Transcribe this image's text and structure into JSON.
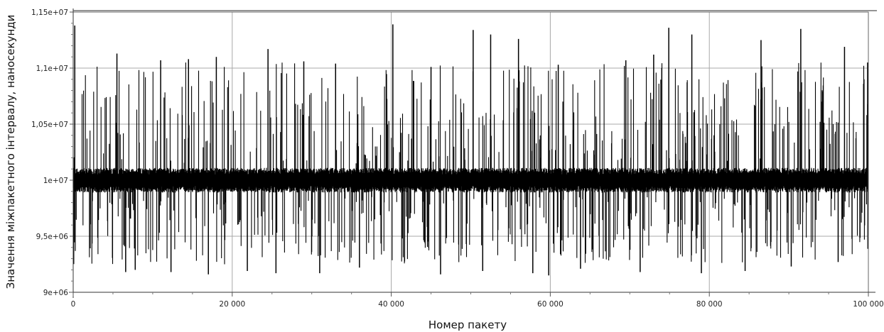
{
  "chart_data": {
    "type": "line",
    "title": "",
    "xlabel": "Номер пакету",
    "ylabel": "Значення міжпакетного інтервалу, наносекунди",
    "xlim": [
      0,
      100000
    ],
    "ylim": [
      9000000,
      11500000
    ],
    "grid": true,
    "legend": "none",
    "x_ticks": [
      {
        "value": 0,
        "label": "0"
      },
      {
        "value": 20000,
        "label": "20 000"
      },
      {
        "value": 40000,
        "label": "40 000"
      },
      {
        "value": 60000,
        "label": "60 000"
      },
      {
        "value": 80000,
        "label": "80 000"
      },
      {
        "value": 100000,
        "label": "100 000"
      }
    ],
    "y_ticks": [
      {
        "value": 9000000,
        "label": "9e+06"
      },
      {
        "value": 9500000,
        "label": "9,5e+06"
      },
      {
        "value": 10000000,
        "label": "1e+07"
      },
      {
        "value": 10500000,
        "label": "1,05e+07"
      },
      {
        "value": 11000000,
        "label": "1,1e+07"
      },
      {
        "value": 11500000,
        "label": "1,15e+07"
      }
    ],
    "series_color": "#000000",
    "baseline": 10000000,
    "series": [
      {
        "x": [
          200,
          5500,
          11000,
          14500,
          18000,
          24500,
          29000,
          33000,
          40200,
          45000,
          50300,
          52500,
          56000,
          61000,
          69500,
          73000,
          74900,
          77800,
          86500,
          91500,
          97000,
          99900
        ],
        "values": [
          11380000,
          11130000,
          11070000,
          11080000,
          11100000,
          11170000,
          11060000,
          11040000,
          11390000,
          11010000,
          11340000,
          11300000,
          11260000,
          11030000,
          11070000,
          11120000,
          11360000,
          11300000,
          11250000,
          11350000,
          11190000,
          11050000
        ]
      },
      {
        "x": [
          6600,
          7800,
          12300,
          17000,
          21900,
          25500,
          31000,
          36000,
          46200,
          51500,
          57800,
          59800,
          63800,
          71300,
          79000,
          84500,
          90300,
          96200
        ],
        "values": [
          9180000,
          9200000,
          9180000,
          9160000,
          9190000,
          9170000,
          9170000,
          9220000,
          9160000,
          9190000,
          9170000,
          9150000,
          9210000,
          9180000,
          9170000,
          9190000,
          9230000,
          9270000
        ]
      }
    ]
  }
}
